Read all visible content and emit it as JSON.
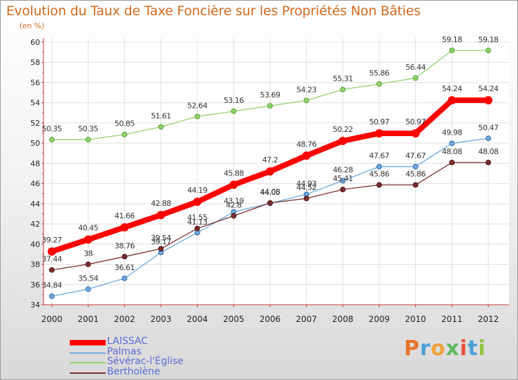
{
  "title": "Evolution du Taux de Taxe Foncière sur les Propriétés Non Bâties",
  "unit": "(en %)",
  "brand": {
    "letters": [
      "P",
      "r",
      "o",
      "x",
      "i",
      "t",
      "i"
    ],
    "colors": [
      "#e8732a",
      "#4a9fd6",
      "#f2a13b",
      "#5cb85c",
      "#e84d3c",
      "#4a9fd6",
      "#8cc63f"
    ]
  },
  "chart_data": {
    "type": "line",
    "title": "Evolution du Taux de Taxe Foncière sur les Propriétés Non Bâties",
    "ylabel": "(en %)",
    "x": [
      "2000",
      "2001",
      "2002",
      "2003",
      "2004",
      "2005",
      "2006",
      "2007",
      "2008",
      "2009",
      "2010",
      "2011",
      "2012"
    ],
    "ylim": [
      34,
      60
    ],
    "yticks": [
      "34",
      "36",
      "38",
      "40",
      "42",
      "44",
      "46",
      "48",
      "50",
      "52",
      "54",
      "56",
      "58",
      "60"
    ],
    "grid": true,
    "legend_position": "bottom-left",
    "series": [
      {
        "name": "LAISSAC",
        "color": "#ff0000",
        "values": [
          39.27,
          40.45,
          41.66,
          42.88,
          44.19,
          45.88,
          47.2,
          48.76,
          50.22,
          50.97,
          50.97,
          54.24,
          54.24
        ],
        "labels": [
          "39.27",
          "40.45",
          "41.66",
          "42.88",
          "44.19",
          "45.88",
          "47.2",
          "48.76",
          "50.22",
          "50.97",
          "50.97",
          "54.24",
          "54.24"
        ]
      },
      {
        "name": "Palmas",
        "color": "#6fa8dc",
        "values": [
          34.84,
          35.54,
          36.61,
          39.17,
          41.13,
          43.19,
          44.05,
          44.93,
          46.28,
          47.67,
          47.67,
          49.98,
          50.47
        ],
        "labels": [
          "34.84",
          "35.54",
          "36.61",
          "39.17",
          "41.13",
          "43.19",
          "44.05",
          "44.93",
          "46.28",
          "47.67",
          "47.67",
          "49.98",
          "50.47"
        ]
      },
      {
        "name": "Sévérac-l'Église",
        "color": "#8fd36a",
        "values": [
          50.35,
          50.35,
          50.85,
          51.61,
          52.64,
          53.16,
          53.69,
          54.23,
          55.31,
          55.86,
          56.44,
          59.18,
          59.18
        ],
        "labels": [
          "50.35",
          "50.35",
          "50.85",
          "51.61",
          "52.64",
          "53.16",
          "53.69",
          "54.23",
          "55.31",
          "55.86",
          "56.44",
          "59.18",
          "59.18"
        ]
      },
      {
        "name": "Bertholène",
        "color": "#7a2e2e",
        "values": [
          37.44,
          38,
          38.76,
          39.54,
          41.55,
          42.8,
          44.08,
          44.52,
          45.41,
          45.86,
          45.86,
          48.08,
          48.08
        ],
        "labels": [
          "37.44",
          "38",
          "38.76",
          "39.54",
          "41.55",
          "42.8",
          "44.08",
          "44.52",
          "45.41",
          "45.86",
          "45.86",
          "48.08",
          "48.08"
        ]
      }
    ]
  }
}
